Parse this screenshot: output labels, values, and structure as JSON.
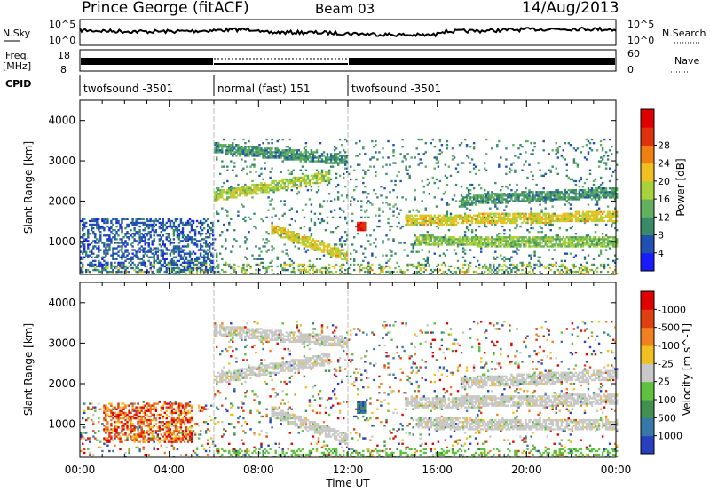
{
  "header": {
    "title": "Prince George (fitACF)",
    "beam": "Beam 03",
    "date": "14/Aug/2013"
  },
  "strip_labels": {
    "nsky": "N.Sky",
    "nsearch": "N.Search",
    "freq_line1": "Freq.",
    "freq_line2": "[MHz]",
    "nave": "Nave",
    "cpid": "CPID",
    "noise_ticks_left": [
      "10^5",
      "10^0"
    ],
    "noise_ticks_right": [
      "10^5",
      "10^0"
    ],
    "freq_ticks": [
      "18",
      "8"
    ],
    "nave_ticks": [
      "60",
      "0"
    ]
  },
  "cpid_segments": [
    {
      "label": "twofsound -3501",
      "start_h": 0,
      "end_h": 6
    },
    {
      "label": "normal (fast) 151",
      "start_h": 6,
      "end_h": 12
    },
    {
      "label": "twofsound -3501",
      "start_h": 12,
      "end_h": 24
    }
  ],
  "axes": {
    "ylabel": "Slant Range [km]",
    "xlabel": "Time UT",
    "yticks": [
      "1000",
      "2000",
      "3000",
      "4000"
    ],
    "xticks": [
      "00:00",
      "04:00",
      "08:00",
      "12:00",
      "16:00",
      "20:00",
      "00:00"
    ]
  },
  "colorbars": {
    "power": {
      "label": "Power [dB]",
      "ticks": [
        "4",
        "8",
        "12",
        "16",
        "20",
        "24",
        "28"
      ],
      "colors": [
        "#1a1aff",
        "#2050b0",
        "#3a8a6a",
        "#60b060",
        "#a8d23a",
        "#f0c020",
        "#f08010",
        "#e03010",
        "#e00000"
      ]
    },
    "velocity": {
      "label": "Velocity [m s^-1]",
      "ticks": [
        "1000",
        "500",
        "100",
        "25",
        "-25",
        "-100",
        "-500",
        "-1000"
      ],
      "colors": [
        "#2840c0",
        "#3878a8",
        "#409050",
        "#60c040",
        "#c8c8c8",
        "#f0c020",
        "#f08020",
        "#e04010",
        "#e00000"
      ]
    }
  },
  "chart_data": [
    {
      "type": "heatmap",
      "name": "power",
      "x_range_hours": [
        0,
        24
      ],
      "y_range_km": [
        180,
        4500
      ],
      "colorbar_range_db": [
        0,
        32
      ],
      "features": [
        {
          "desc": "near-range scatter",
          "t": [
            0,
            6
          ],
          "r": [
            200,
            1550
          ],
          "level": 6
        },
        {
          "desc": "band",
          "t": [
            6,
            11.2
          ],
          "r_start": 2100,
          "r_end": 2600,
          "level": 16
        },
        {
          "desc": "band",
          "t": [
            6,
            12
          ],
          "r_start": 3300,
          "r_end": 3000,
          "level": 10
        },
        {
          "desc": "band",
          "t": [
            8.5,
            12
          ],
          "r_start": 1300,
          "r_end": 600,
          "level": 18
        },
        {
          "desc": "spot",
          "t": [
            12.4,
            12.8
          ],
          "r": [
            1250,
            1450
          ],
          "level": 28
        },
        {
          "desc": "band",
          "t": [
            14.5,
            24
          ],
          "r_start": 1500,
          "r_end": 1600,
          "level": 18
        },
        {
          "desc": "band",
          "t": [
            15,
            24
          ],
          "r_start": 1000,
          "r_end": 950,
          "level": 14
        },
        {
          "desc": "band",
          "t": [
            17,
            24
          ],
          "r_start": 2000,
          "r_end": 2200,
          "level": 10
        }
      ]
    },
    {
      "type": "heatmap",
      "name": "velocity",
      "x_range_hours": [
        0,
        24
      ],
      "y_range_km": [
        180,
        4500
      ],
      "colorbar_range_ms": [
        -1200,
        1200
      ],
      "features": [
        {
          "desc": "near-range flow",
          "t": [
            1,
            5
          ],
          "r": [
            500,
            1500
          ],
          "velocity": -600
        },
        {
          "desc": "ground scatter",
          "t": [
            6,
            24
          ],
          "r": [
            400,
            3300
          ],
          "velocity": 0
        }
      ]
    }
  ]
}
